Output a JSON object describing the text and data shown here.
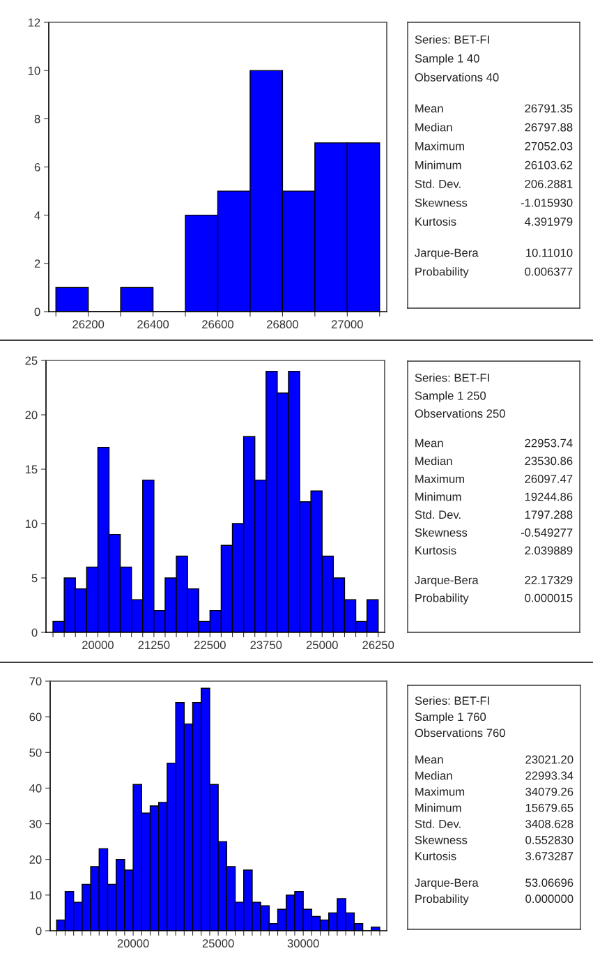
{
  "chart_data": [
    {
      "type": "histogram",
      "color": "#0000ff",
      "bins": [
        26100,
        26200,
        26300,
        26400,
        26500,
        26600,
        26700,
        26800,
        26900,
        27000,
        27100
      ],
      "values": [
        1,
        0,
        1,
        0,
        4,
        5,
        10,
        5,
        7,
        7
      ],
      "xlim": [
        26078,
        27122
      ],
      "ylim": [
        0,
        12
      ],
      "yticks": [
        0,
        2,
        4,
        6,
        8,
        10,
        12
      ],
      "xticks": [
        {
          "value": 26100,
          "label": null
        },
        26200,
        {
          "value": 26300,
          "label": null
        },
        26400,
        {
          "value": 26500,
          "label": null
        },
        26600,
        {
          "value": 26700,
          "label": null
        },
        26800,
        {
          "value": 26900,
          "label": null
        },
        27000,
        {
          "value": 27100,
          "label": null
        }
      ],
      "grid": false,
      "legend": false
    },
    {
      "type": "other",
      "annotations": [
        "Series: BET-FI",
        "Sample 1 40",
        "Observations 40",
        "Mean",
        "26791.35",
        "Median",
        "26797.88",
        "Maximum",
        "27052.03",
        "Minimum",
        "26103.62",
        "Std. Dev.",
        "206.2881",
        "Skewness",
        "-1.015930",
        "Kurtosis",
        "4.391979",
        "Jarque-Bera",
        "10.11010",
        "Probability",
        "0.006377"
      ]
    },
    {
      "type": "histogram",
      "color": "#0000ff",
      "bins": [
        19000,
        19250,
        19500,
        19750,
        20000,
        20250,
        20500,
        20750,
        21000,
        21250,
        21500,
        21750,
        22000,
        22250,
        22500,
        22750,
        23000,
        23250,
        23500,
        23750,
        24000,
        24250,
        24500,
        24750,
        25000,
        25250,
        25500,
        25750,
        26000,
        26250
      ],
      "values": [
        1,
        5,
        4,
        6,
        17,
        9,
        6,
        3,
        14,
        2,
        5,
        7,
        4,
        1,
        2,
        8,
        10,
        18,
        14,
        24,
        22,
        24,
        12,
        13,
        7,
        5,
        3,
        1,
        3
      ],
      "xlim": [
        18844,
        26394
      ],
      "ylim": [
        0,
        25
      ],
      "yticks": [
        0,
        5,
        10,
        15,
        20,
        25
      ],
      "xticks": [
        {
          "value": 19000,
          "label": null
        },
        {
          "value": 19250,
          "label": null
        },
        {
          "value": 19500,
          "label": null
        },
        {
          "value": 19750,
          "label": null
        },
        20000,
        {
          "value": 20250,
          "label": null
        },
        {
          "value": 20500,
          "label": null
        },
        {
          "value": 20750,
          "label": null
        },
        {
          "value": 21000,
          "label": null
        },
        21250,
        {
          "value": 21500,
          "label": null
        },
        {
          "value": 21750,
          "label": null
        },
        {
          "value": 22000,
          "label": null
        },
        {
          "value": 22250,
          "label": null
        },
        22500,
        {
          "value": 22750,
          "label": null
        },
        {
          "value": 23000,
          "label": null
        },
        {
          "value": 23250,
          "label": null
        },
        {
          "value": 23500,
          "label": null
        },
        23750,
        {
          "value": 24000,
          "label": null
        },
        {
          "value": 24250,
          "label": null
        },
        {
          "value": 24500,
          "label": null
        },
        {
          "value": 24750,
          "label": null
        },
        25000,
        {
          "value": 25250,
          "label": null
        },
        {
          "value": 25500,
          "label": null
        },
        {
          "value": 25750,
          "label": null
        },
        {
          "value": 26000,
          "label": null
        },
        26250
      ],
      "grid": false,
      "legend": false
    },
    {
      "type": "other",
      "annotations": [
        "Series: BET-FI",
        "Sample 1 250",
        "Observations 250",
        "Mean",
        "22953.74",
        "Median",
        "23530.86",
        "Maximum",
        "26097.47",
        "Minimum",
        "19244.86",
        "Std. Dev.",
        "1797.288",
        "Skewness",
        "-0.549277",
        "Kurtosis",
        "2.039889",
        "Jarque-Bera",
        "22.17329",
        "Probability",
        "0.000015"
      ]
    },
    {
      "type": "histogram",
      "color": "#0000ff",
      "bins": [
        15500,
        16000,
        16500,
        17000,
        17500,
        18000,
        18500,
        19000,
        19500,
        20000,
        20500,
        21000,
        21500,
        22000,
        22500,
        23000,
        23500,
        24000,
        24500,
        25000,
        25500,
        26000,
        26500,
        27000,
        27500,
        28000,
        28500,
        29000,
        29500,
        30000,
        30500,
        31000,
        31500,
        32000,
        32500,
        33000,
        33500,
        34000,
        34500
      ],
      "values": [
        3,
        11,
        8,
        13,
        18,
        23,
        13,
        20,
        17,
        41,
        33,
        35,
        36,
        47,
        64,
        58,
        64,
        68,
        41,
        25,
        18,
        8,
        17,
        8,
        7,
        2,
        6,
        10,
        11,
        6,
        4,
        3,
        5,
        9,
        5,
        2,
        0,
        1
      ],
      "xlim": [
        15120,
        34910
      ],
      "ylim": [
        0,
        70
      ],
      "yticks": [
        0,
        10,
        20,
        30,
        40,
        50,
        60,
        70
      ],
      "xticks": [
        {
          "value": 15500,
          "label": null
        },
        {
          "value": 16000,
          "label": null
        },
        {
          "value": 16500,
          "label": null
        },
        {
          "value": 17000,
          "label": null
        },
        {
          "value": 17500,
          "label": null
        },
        {
          "value": 18000,
          "label": null
        },
        {
          "value": 18500,
          "label": null
        },
        {
          "value": 19000,
          "label": null
        },
        {
          "value": 19500,
          "label": null
        },
        20000,
        {
          "value": 20500,
          "label": null
        },
        {
          "value": 21000,
          "label": null
        },
        {
          "value": 21500,
          "label": null
        },
        {
          "value": 22000,
          "label": null
        },
        {
          "value": 22500,
          "label": null
        },
        {
          "value": 23000,
          "label": null
        },
        {
          "value": 23500,
          "label": null
        },
        {
          "value": 24000,
          "label": null
        },
        {
          "value": 24500,
          "label": null
        },
        25000,
        {
          "value": 25500,
          "label": null
        },
        {
          "value": 26000,
          "label": null
        },
        {
          "value": 26500,
          "label": null
        },
        {
          "value": 27000,
          "label": null
        },
        {
          "value": 27500,
          "label": null
        },
        {
          "value": 28000,
          "label": null
        },
        {
          "value": 28500,
          "label": null
        },
        {
          "value": 29000,
          "label": null
        },
        {
          "value": 29500,
          "label": null
        },
        30000,
        {
          "value": 30500,
          "label": null
        },
        {
          "value": 31000,
          "label": null
        },
        {
          "value": 31500,
          "label": null
        },
        {
          "value": 32000,
          "label": null
        },
        {
          "value": 32500,
          "label": null
        },
        {
          "value": 33000,
          "label": null
        },
        {
          "value": 33500,
          "label": null
        },
        {
          "value": 34000,
          "label": null
        },
        {
          "value": 34500,
          "label": null
        }
      ],
      "grid": false,
      "legend": false
    },
    {
      "type": "other",
      "annotations": [
        "Series: BET-FI",
        "Sample 1 760",
        "Observations 760",
        "Mean",
        "23021.20",
        "Median",
        "22993.34",
        "Maximum",
        "34079.26",
        "Minimum",
        "15679.65",
        "Std. Dev.",
        "3408.628",
        "Skewness",
        "0.552830",
        "Kurtosis",
        "3.673287",
        "Jarque-Bera",
        "53.06696",
        "Probability",
        "0.000000"
      ]
    }
  ]
}
